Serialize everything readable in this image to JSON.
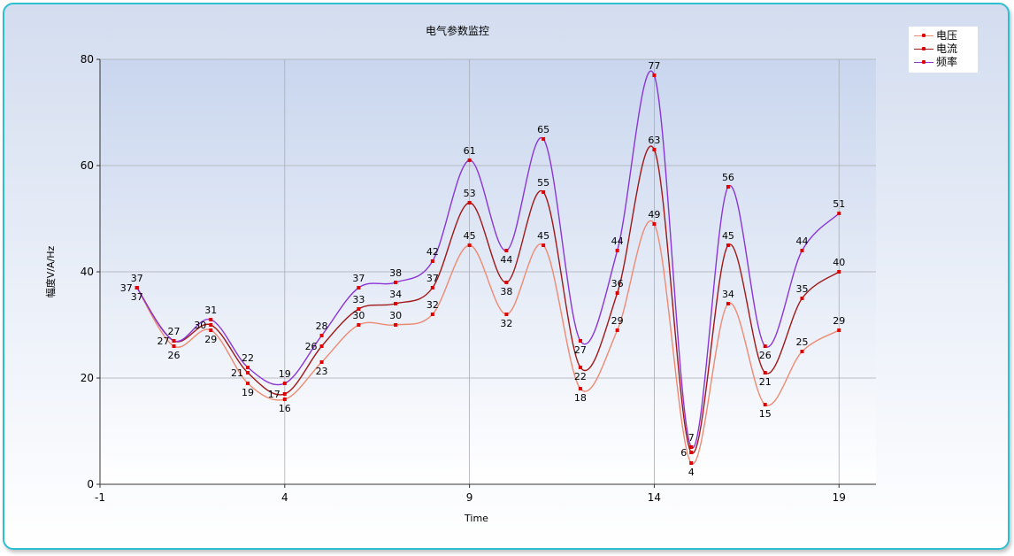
{
  "chart_data": {
    "type": "line",
    "title": "电气参数监控",
    "xlabel": "Time",
    "ylabel": "幅度V/A/Hz",
    "xlim": [
      -1,
      20
    ],
    "ylim": [
      0,
      80
    ],
    "x_ticks": [
      -1,
      4,
      9,
      14,
      19
    ],
    "y_ticks": [
      0,
      20,
      40,
      60,
      80
    ],
    "grid": true,
    "legend_position": "top-right",
    "x": [
      0,
      1,
      2,
      3,
      4,
      5,
      6,
      7,
      8,
      9,
      10,
      11,
      12,
      13,
      14,
      15,
      16,
      17,
      18,
      19
    ],
    "series": [
      {
        "name": "电压",
        "color": "#ee8a72",
        "values": [
          37,
          26,
          29,
          19,
          16,
          23,
          30,
          30,
          32,
          45,
          32,
          45,
          18,
          29,
          49,
          4,
          34,
          15,
          25,
          29
        ],
        "label_pos": [
          "above",
          "below",
          "below",
          "below",
          "below",
          "below",
          "above",
          "above",
          "above",
          "above",
          "below",
          "above",
          "below",
          "above",
          "above",
          "below",
          "above",
          "below",
          "above",
          "above"
        ]
      },
      {
        "name": "电流",
        "color": "#a01818",
        "values": [
          37,
          27,
          30,
          21,
          17,
          26,
          33,
          34,
          37,
          53,
          38,
          55,
          22,
          36,
          63,
          6,
          45,
          21,
          35,
          40
        ],
        "label_pos": [
          "below",
          "above",
          "left",
          "left",
          "left",
          "left",
          "above",
          "above",
          "above",
          "above",
          "below",
          "above",
          "below",
          "above",
          "above",
          "left",
          "above",
          "below",
          "above",
          "above"
        ]
      },
      {
        "name": "频率",
        "color": "#8a35d6",
        "values": [
          37,
          27,
          31,
          22,
          19,
          28,
          37,
          38,
          42,
          61,
          44,
          65,
          27,
          44,
          77,
          7,
          56,
          26,
          44,
          51
        ],
        "label_pos": [
          "left",
          "left",
          "above",
          "above",
          "above",
          "above",
          "above",
          "above",
          "above",
          "above",
          "below",
          "above",
          "below",
          "above",
          "above",
          "above",
          "above",
          "below",
          "above",
          "above"
        ]
      }
    ]
  }
}
